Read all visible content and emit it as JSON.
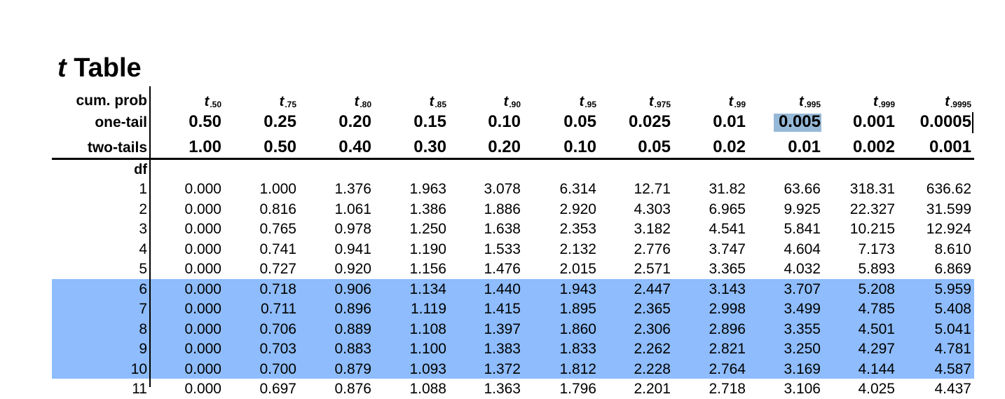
{
  "title": {
    "italic_part": "t",
    "rest": "Table"
  },
  "headers": {
    "cum_prob_label": "cum. prob",
    "one_tail_label": "one-tail",
    "two_tails_label": "two-tails",
    "df_label": "df",
    "t_symbol": "t",
    "t_subscripts": [
      ".50",
      ".75",
      ".80",
      ".85",
      ".90",
      ".95",
      ".975",
      ".99",
      ".995",
      ".999",
      ".9995"
    ],
    "one_tail": [
      "0.50",
      "0.25",
      "0.20",
      "0.15",
      "0.10",
      "0.05",
      "0.025",
      "0.01",
      "0.005",
      "0.001",
      "0.0005"
    ],
    "two_tails": [
      "1.00",
      "0.50",
      "0.40",
      "0.30",
      "0.20",
      "0.10",
      "0.05",
      "0.02",
      "0.01",
      "0.002",
      "0.001"
    ]
  },
  "rows": [
    {
      "df": "1",
      "values": [
        "0.000",
        "1.000",
        "1.376",
        "1.963",
        "3.078",
        "6.314",
        "12.71",
        "31.82",
        "63.66",
        "318.31",
        "636.62"
      ]
    },
    {
      "df": "2",
      "values": [
        "0.000",
        "0.816",
        "1.061",
        "1.386",
        "1.886",
        "2.920",
        "4.303",
        "6.965",
        "9.925",
        "22.327",
        "31.599"
      ]
    },
    {
      "df": "3",
      "values": [
        "0.000",
        "0.765",
        "0.978",
        "1.250",
        "1.638",
        "2.353",
        "3.182",
        "4.541",
        "5.841",
        "10.215",
        "12.924"
      ]
    },
    {
      "df": "4",
      "values": [
        "0.000",
        "0.741",
        "0.941",
        "1.190",
        "1.533",
        "2.132",
        "2.776",
        "3.747",
        "4.604",
        "7.173",
        "8.610"
      ]
    },
    {
      "df": "5",
      "values": [
        "0.000",
        "0.727",
        "0.920",
        "1.156",
        "1.476",
        "2.015",
        "2.571",
        "3.365",
        "4.032",
        "5.893",
        "6.869"
      ]
    },
    {
      "df": "6",
      "values": [
        "0.000",
        "0.718",
        "0.906",
        "1.134",
        "1.440",
        "1.943",
        "2.447",
        "3.143",
        "3.707",
        "5.208",
        "5.959"
      ]
    },
    {
      "df": "7",
      "values": [
        "0.000",
        "0.711",
        "0.896",
        "1.119",
        "1.415",
        "1.895",
        "2.365",
        "2.998",
        "3.499",
        "4.785",
        "5.408"
      ]
    },
    {
      "df": "8",
      "values": [
        "0.000",
        "0.706",
        "0.889",
        "1.108",
        "1.397",
        "1.860",
        "2.306",
        "2.896",
        "3.355",
        "4.501",
        "5.041"
      ]
    },
    {
      "df": "9",
      "values": [
        "0.000",
        "0.703",
        "0.883",
        "1.100",
        "1.383",
        "1.833",
        "2.262",
        "2.821",
        "3.250",
        "4.297",
        "4.781"
      ]
    },
    {
      "df": "10",
      "values": [
        "0.000",
        "0.700",
        "0.879",
        "1.093",
        "1.372",
        "1.812",
        "2.228",
        "2.764",
        "3.169",
        "4.144",
        "4.587"
      ]
    },
    {
      "df": "11",
      "values": [
        "0.000",
        "0.697",
        "0.876",
        "1.088",
        "1.363",
        "1.796",
        "2.201",
        "2.718",
        "3.106",
        "4.025",
        "4.437"
      ]
    }
  ],
  "colors": {
    "row_highlight": "#8ebcfc",
    "text_selection": "#97b9d8",
    "rule_color": "#000000"
  }
}
